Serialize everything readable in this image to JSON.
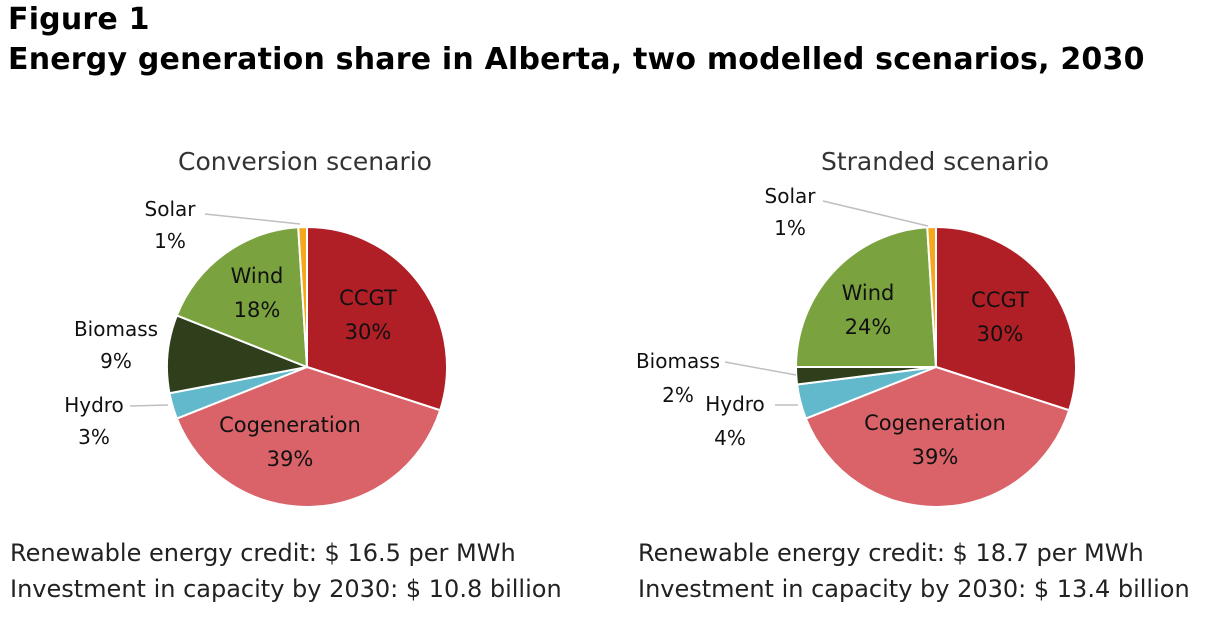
{
  "figure_label": "Figure 1",
  "figure_title": "Energy generation share in Alberta, two modelled scenarios, 2030",
  "colors": {
    "CCGT": "#B01E26",
    "Cogeneration": "#D96369",
    "Hydro": "#63B9CC",
    "Biomass": "#2F3F1B",
    "Wind": "#7AA23E",
    "Solar": "#F4A81E"
  },
  "chart_data": [
    {
      "type": "pie",
      "title": "Conversion scenario",
      "slices": [
        {
          "name": "CCGT",
          "value": 30,
          "label": "30%"
        },
        {
          "name": "Cogeneration",
          "value": 39,
          "label": "39%"
        },
        {
          "name": "Hydro",
          "value": 3,
          "label": "3%"
        },
        {
          "name": "Biomass",
          "value": 9,
          "label": "9%"
        },
        {
          "name": "Wind",
          "value": 18,
          "label": "18%"
        },
        {
          "name": "Solar",
          "value": 1,
          "label": "1%"
        }
      ],
      "notes": [
        "Renewable energy credit: $ 16.5 per MWh",
        "Investment in capacity by 2030: $ 10.8 billion"
      ]
    },
    {
      "type": "pie",
      "title": "Stranded scenario",
      "slices": [
        {
          "name": "CCGT",
          "value": 30,
          "label": "30%"
        },
        {
          "name": "Cogeneration",
          "value": 39,
          "label": "39%"
        },
        {
          "name": "Hydro",
          "value": 4,
          "label": "4%"
        },
        {
          "name": "Biomass",
          "value": 2,
          "label": "2%"
        },
        {
          "name": "Wind",
          "value": 24,
          "label": "24%"
        },
        {
          "name": "Solar",
          "value": 1,
          "label": "1%"
        }
      ],
      "notes": [
        "Renewable energy credit: $ 18.7 per MWh",
        "Investment in capacity by 2030: $ 13.4 billion"
      ]
    }
  ]
}
